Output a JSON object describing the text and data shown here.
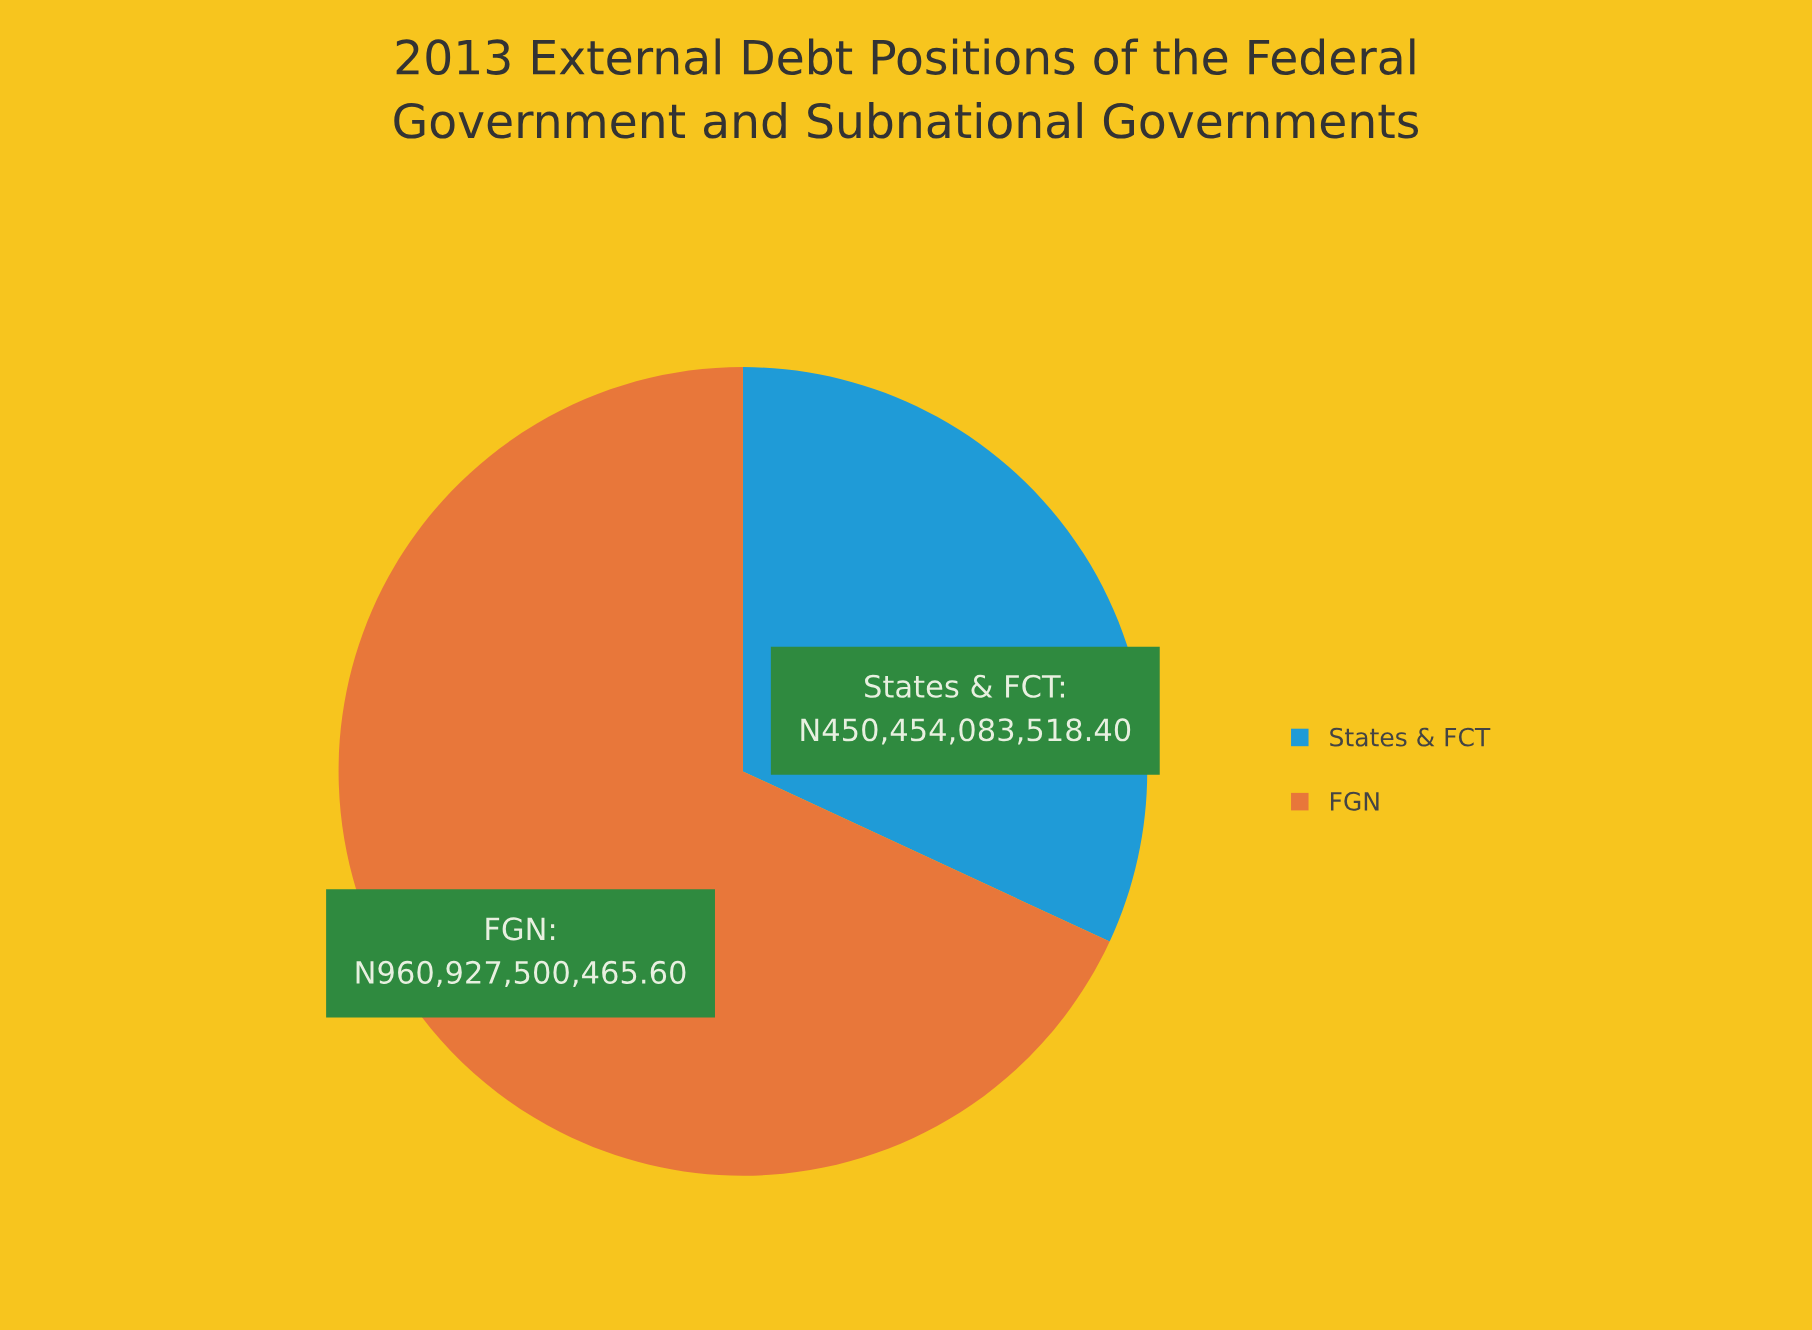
{
  "chart_data": {
    "type": "pie",
    "title": "2013 External Debt Positions of the Federal\nGovernment and Subnational Governments",
    "categories": [
      "States & FCT",
      "FGN"
    ],
    "values": [
      450454083518.4,
      960927500465.6
    ],
    "colors": [
      "#1f9bd7",
      "#e8773a"
    ],
    "value_labels": [
      "States & FCT:\nN450,454,083,518.40",
      "FGN:\nN960,927,500,465.60"
    ],
    "legend": "right"
  }
}
